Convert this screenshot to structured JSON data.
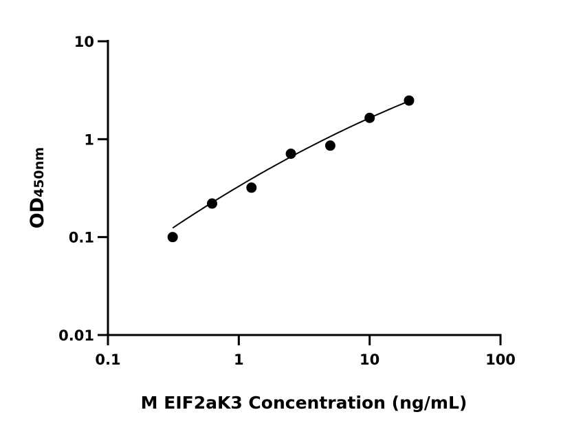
{
  "chart_data": {
    "type": "scatter",
    "title": "",
    "xlabel": "M EIF2aK3 Concentration (ng/mL)",
    "ylabel_main": "OD",
    "ylabel_sub": "450nm",
    "xscale": "log",
    "yscale": "log",
    "xlim": [
      0.1,
      100
    ],
    "ylim": [
      0.01,
      10
    ],
    "xticks": [
      0.1,
      1,
      10,
      100
    ],
    "xtick_labels": [
      "0.1",
      "1",
      "10",
      "100"
    ],
    "yticks": [
      0.01,
      0.1,
      1,
      10
    ],
    "ytick_labels": [
      "0.01",
      "0.1",
      "1",
      "10"
    ],
    "grid": false,
    "series": [
      {
        "x": [
          0.3125,
          0.625,
          1.25,
          2.5,
          5,
          10,
          20
        ],
        "y": [
          0.1,
          0.22,
          0.32,
          0.71,
          0.86,
          1.65,
          2.48
        ]
      }
    ],
    "fit_curve": {
      "x": [
        0.3125,
        2.5,
        20
      ],
      "y": [
        0.124,
        0.66,
        2.45
      ]
    },
    "colors": {
      "marker": "#000000",
      "line": "#000000"
    }
  }
}
